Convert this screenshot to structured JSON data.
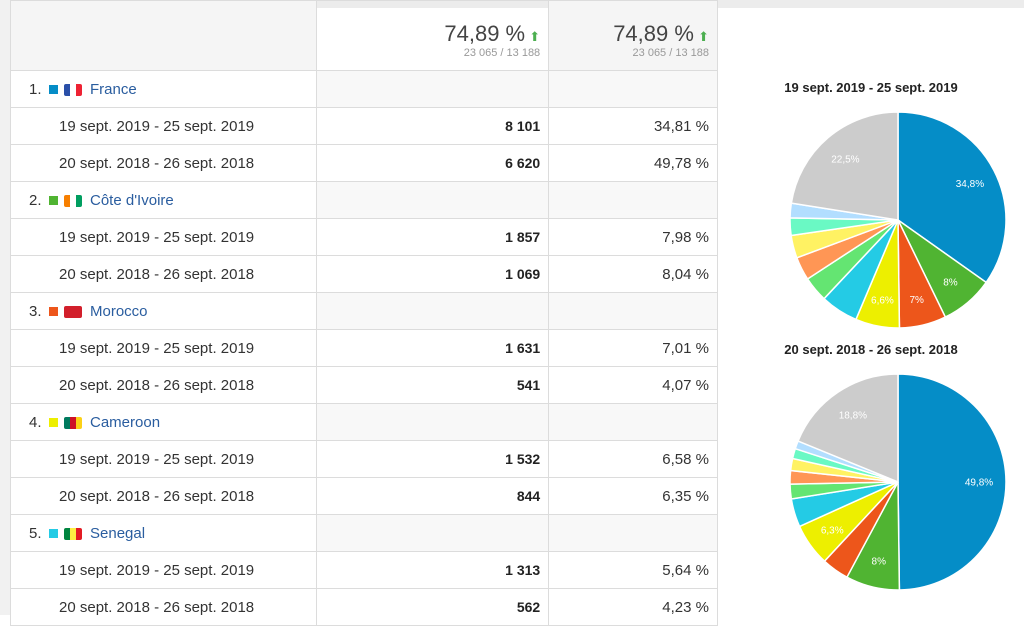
{
  "header": {
    "col2": {
      "value": "74,89 %",
      "sub": "23 065 / 13 188",
      "trend": "up"
    },
    "col3": {
      "value": "74,89 %",
      "sub": "23 065 / 13 188",
      "trend": "up"
    }
  },
  "countries": [
    {
      "index": "1.",
      "name": "France",
      "color": "#058dc7",
      "rows": [
        {
          "period": "19 sept. 2019 - 25 sept. 2019",
          "value": "8 101",
          "pct": "34,81 %"
        },
        {
          "period": "20 sept. 2018 - 26 sept. 2018",
          "value": "6 620",
          "pct": "49,78 %"
        }
      ]
    },
    {
      "index": "2.",
      "name": "Côte d'Ivoire",
      "color": "#50b432",
      "rows": [
        {
          "period": "19 sept. 2019 - 25 sept. 2019",
          "value": "1 857",
          "pct": "7,98 %"
        },
        {
          "period": "20 sept. 2018 - 26 sept. 2018",
          "value": "1 069",
          "pct": "8,04 %"
        }
      ]
    },
    {
      "index": "3.",
      "name": "Morocco",
      "color": "#ed561b",
      "rows": [
        {
          "period": "19 sept. 2019 - 25 sept. 2019",
          "value": "1 631",
          "pct": "7,01 %"
        },
        {
          "period": "20 sept. 2018 - 26 sept. 2018",
          "value": "541",
          "pct": "4,07 %"
        }
      ]
    },
    {
      "index": "4.",
      "name": "Cameroon",
      "color": "#edef00",
      "rows": [
        {
          "period": "19 sept. 2019 - 25 sept. 2019",
          "value": "1 532",
          "pct": "6,58 %"
        },
        {
          "period": "20 sept. 2018 - 26 sept. 2018",
          "value": "844",
          "pct": "6,35 %"
        }
      ]
    },
    {
      "index": "5.",
      "name": "Senegal",
      "color": "#24cbe5",
      "rows": [
        {
          "period": "19 sept. 2019 - 25 sept. 2019",
          "value": "1 313",
          "pct": "5,64 %"
        },
        {
          "period": "20 sept. 2018 - 26 sept. 2018",
          "value": "562",
          "pct": "4,23 %"
        }
      ]
    }
  ],
  "chart_data": [
    {
      "type": "pie",
      "title": "19 sept. 2019 - 25 sept. 2019",
      "values": [
        34.81,
        7.98,
        7.01,
        6.58,
        5.64,
        3.8,
        3.5,
        3.4,
        2.6,
        2.2,
        22.5
      ],
      "labels": [
        "34,8%",
        "8%",
        "7%",
        "6,6%",
        "",
        "",
        "",
        "",
        "",
        "",
        "22,5%"
      ],
      "colors": [
        "#058dc7",
        "#50b432",
        "#ed561b",
        "#edef00",
        "#24cbe5",
        "#64e572",
        "#ff9655",
        "#fff263",
        "#6af9c4",
        "#b2deff",
        "#cccccc"
      ]
    },
    {
      "type": "pie",
      "title": "20 sept. 2018 - 26 sept. 2018",
      "values": [
        49.78,
        8.04,
        4.07,
        6.35,
        4.23,
        2.2,
        2.0,
        1.8,
        1.5,
        1.2,
        18.8
      ],
      "labels": [
        "49,8%",
        "8%",
        "",
        "6,3%",
        "",
        "",
        "",
        "",
        "",
        "",
        "18,8%"
      ],
      "colors": [
        "#058dc7",
        "#50b432",
        "#ed561b",
        "#edef00",
        "#24cbe5",
        "#64e572",
        "#ff9655",
        "#fff263",
        "#6af9c4",
        "#b2deff",
        "#cccccc"
      ]
    }
  ]
}
